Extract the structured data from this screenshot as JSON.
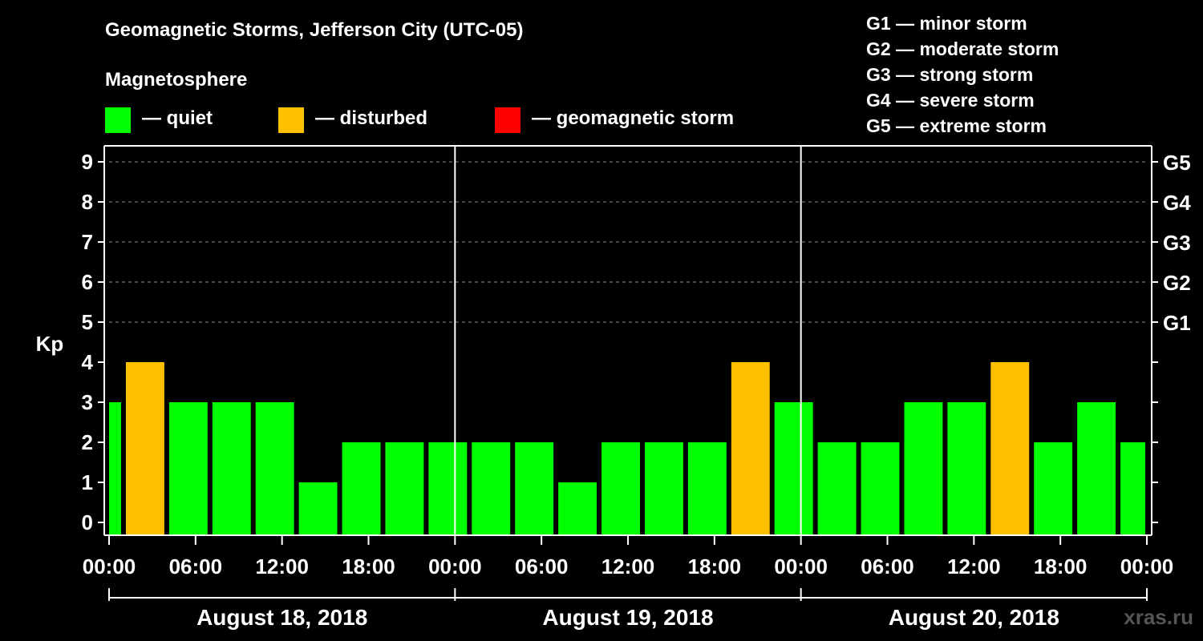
{
  "header": {
    "title": "Geomagnetic Storms, Jefferson City (UTC-05)",
    "subtitle": "Magnetosphere"
  },
  "legend": [
    {
      "label": "— quiet",
      "color": "#00ff00"
    },
    {
      "label": "— disturbed",
      "color": "#ffc000"
    },
    {
      "label": "— geomagnetic storm",
      "color": "#ff0000"
    }
  ],
  "storm_scale": [
    "G1 — minor storm",
    "G2 — moderate storm",
    "G3 — strong storm",
    "G4 — severe storm",
    "G5 — extreme storm"
  ],
  "watermark": "xras.ru",
  "chart_data": {
    "type": "bar",
    "ylabel": "Kp",
    "ylim": [
      0,
      9
    ],
    "yticks": [
      "0",
      "1",
      "2",
      "3",
      "4",
      "5",
      "6",
      "7",
      "8",
      "9"
    ],
    "right_ticks": [
      {
        "kp": 5,
        "label": "G1"
      },
      {
        "kp": 6,
        "label": "G2"
      },
      {
        "kp": 7,
        "label": "G3"
      },
      {
        "kp": 8,
        "label": "G4"
      },
      {
        "kp": 9,
        "label": "G5"
      }
    ],
    "x_tick_labels": [
      "00:00",
      "06:00",
      "12:00",
      "18:00",
      "00:00",
      "06:00",
      "12:00",
      "18:00",
      "00:00",
      "06:00",
      "12:00",
      "18:00",
      "00:00"
    ],
    "days": [
      "August 18, 2018",
      "August 19, 2018",
      "August 20, 2018"
    ],
    "grid": "dashed horizontal at Kp 5–9",
    "bars": [
      {
        "start": "2018-08-17 22:00",
        "end": "2018-08-18 01:00",
        "kp": 3,
        "status": "quiet"
      },
      {
        "start": "2018-08-18 01:00",
        "end": "2018-08-18 04:00",
        "kp": 4,
        "status": "disturbed"
      },
      {
        "start": "2018-08-18 04:00",
        "end": "2018-08-18 07:00",
        "kp": 3,
        "status": "quiet"
      },
      {
        "start": "2018-08-18 07:00",
        "end": "2018-08-18 10:00",
        "kp": 3,
        "status": "quiet"
      },
      {
        "start": "2018-08-18 10:00",
        "end": "2018-08-18 13:00",
        "kp": 3,
        "status": "quiet"
      },
      {
        "start": "2018-08-18 13:00",
        "end": "2018-08-18 16:00",
        "kp": 1,
        "status": "quiet"
      },
      {
        "start": "2018-08-18 16:00",
        "end": "2018-08-18 19:00",
        "kp": 2,
        "status": "quiet"
      },
      {
        "start": "2018-08-18 19:00",
        "end": "2018-08-18 22:00",
        "kp": 2,
        "status": "quiet"
      },
      {
        "start": "2018-08-18 22:00",
        "end": "2018-08-19 01:00",
        "kp": 2,
        "status": "quiet"
      },
      {
        "start": "2018-08-19 01:00",
        "end": "2018-08-19 04:00",
        "kp": 2,
        "status": "quiet"
      },
      {
        "start": "2018-08-19 04:00",
        "end": "2018-08-19 07:00",
        "kp": 2,
        "status": "quiet"
      },
      {
        "start": "2018-08-19 07:00",
        "end": "2018-08-19 10:00",
        "kp": 1,
        "status": "quiet"
      },
      {
        "start": "2018-08-19 10:00",
        "end": "2018-08-19 13:00",
        "kp": 2,
        "status": "quiet"
      },
      {
        "start": "2018-08-19 13:00",
        "end": "2018-08-19 16:00",
        "kp": 2,
        "status": "quiet"
      },
      {
        "start": "2018-08-19 16:00",
        "end": "2018-08-19 19:00",
        "kp": 2,
        "status": "quiet"
      },
      {
        "start": "2018-08-19 19:00",
        "end": "2018-08-19 22:00",
        "kp": 4,
        "status": "disturbed"
      },
      {
        "start": "2018-08-19 22:00",
        "end": "2018-08-20 01:00",
        "kp": 3,
        "status": "quiet"
      },
      {
        "start": "2018-08-20 01:00",
        "end": "2018-08-20 04:00",
        "kp": 2,
        "status": "quiet"
      },
      {
        "start": "2018-08-20 04:00",
        "end": "2018-08-20 07:00",
        "kp": 2,
        "status": "quiet"
      },
      {
        "start": "2018-08-20 07:00",
        "end": "2018-08-20 10:00",
        "kp": 3,
        "status": "quiet"
      },
      {
        "start": "2018-08-20 10:00",
        "end": "2018-08-20 13:00",
        "kp": 3,
        "status": "quiet"
      },
      {
        "start": "2018-08-20 13:00",
        "end": "2018-08-20 16:00",
        "kp": 4,
        "status": "disturbed"
      },
      {
        "start": "2018-08-20 16:00",
        "end": "2018-08-20 19:00",
        "kp": 2,
        "status": "quiet"
      },
      {
        "start": "2018-08-20 19:00",
        "end": "2018-08-20 22:00",
        "kp": 3,
        "status": "quiet"
      },
      {
        "start": "2018-08-20 22:00",
        "end": "2018-08-21 01:00",
        "kp": 2,
        "status": "quiet"
      }
    ]
  }
}
